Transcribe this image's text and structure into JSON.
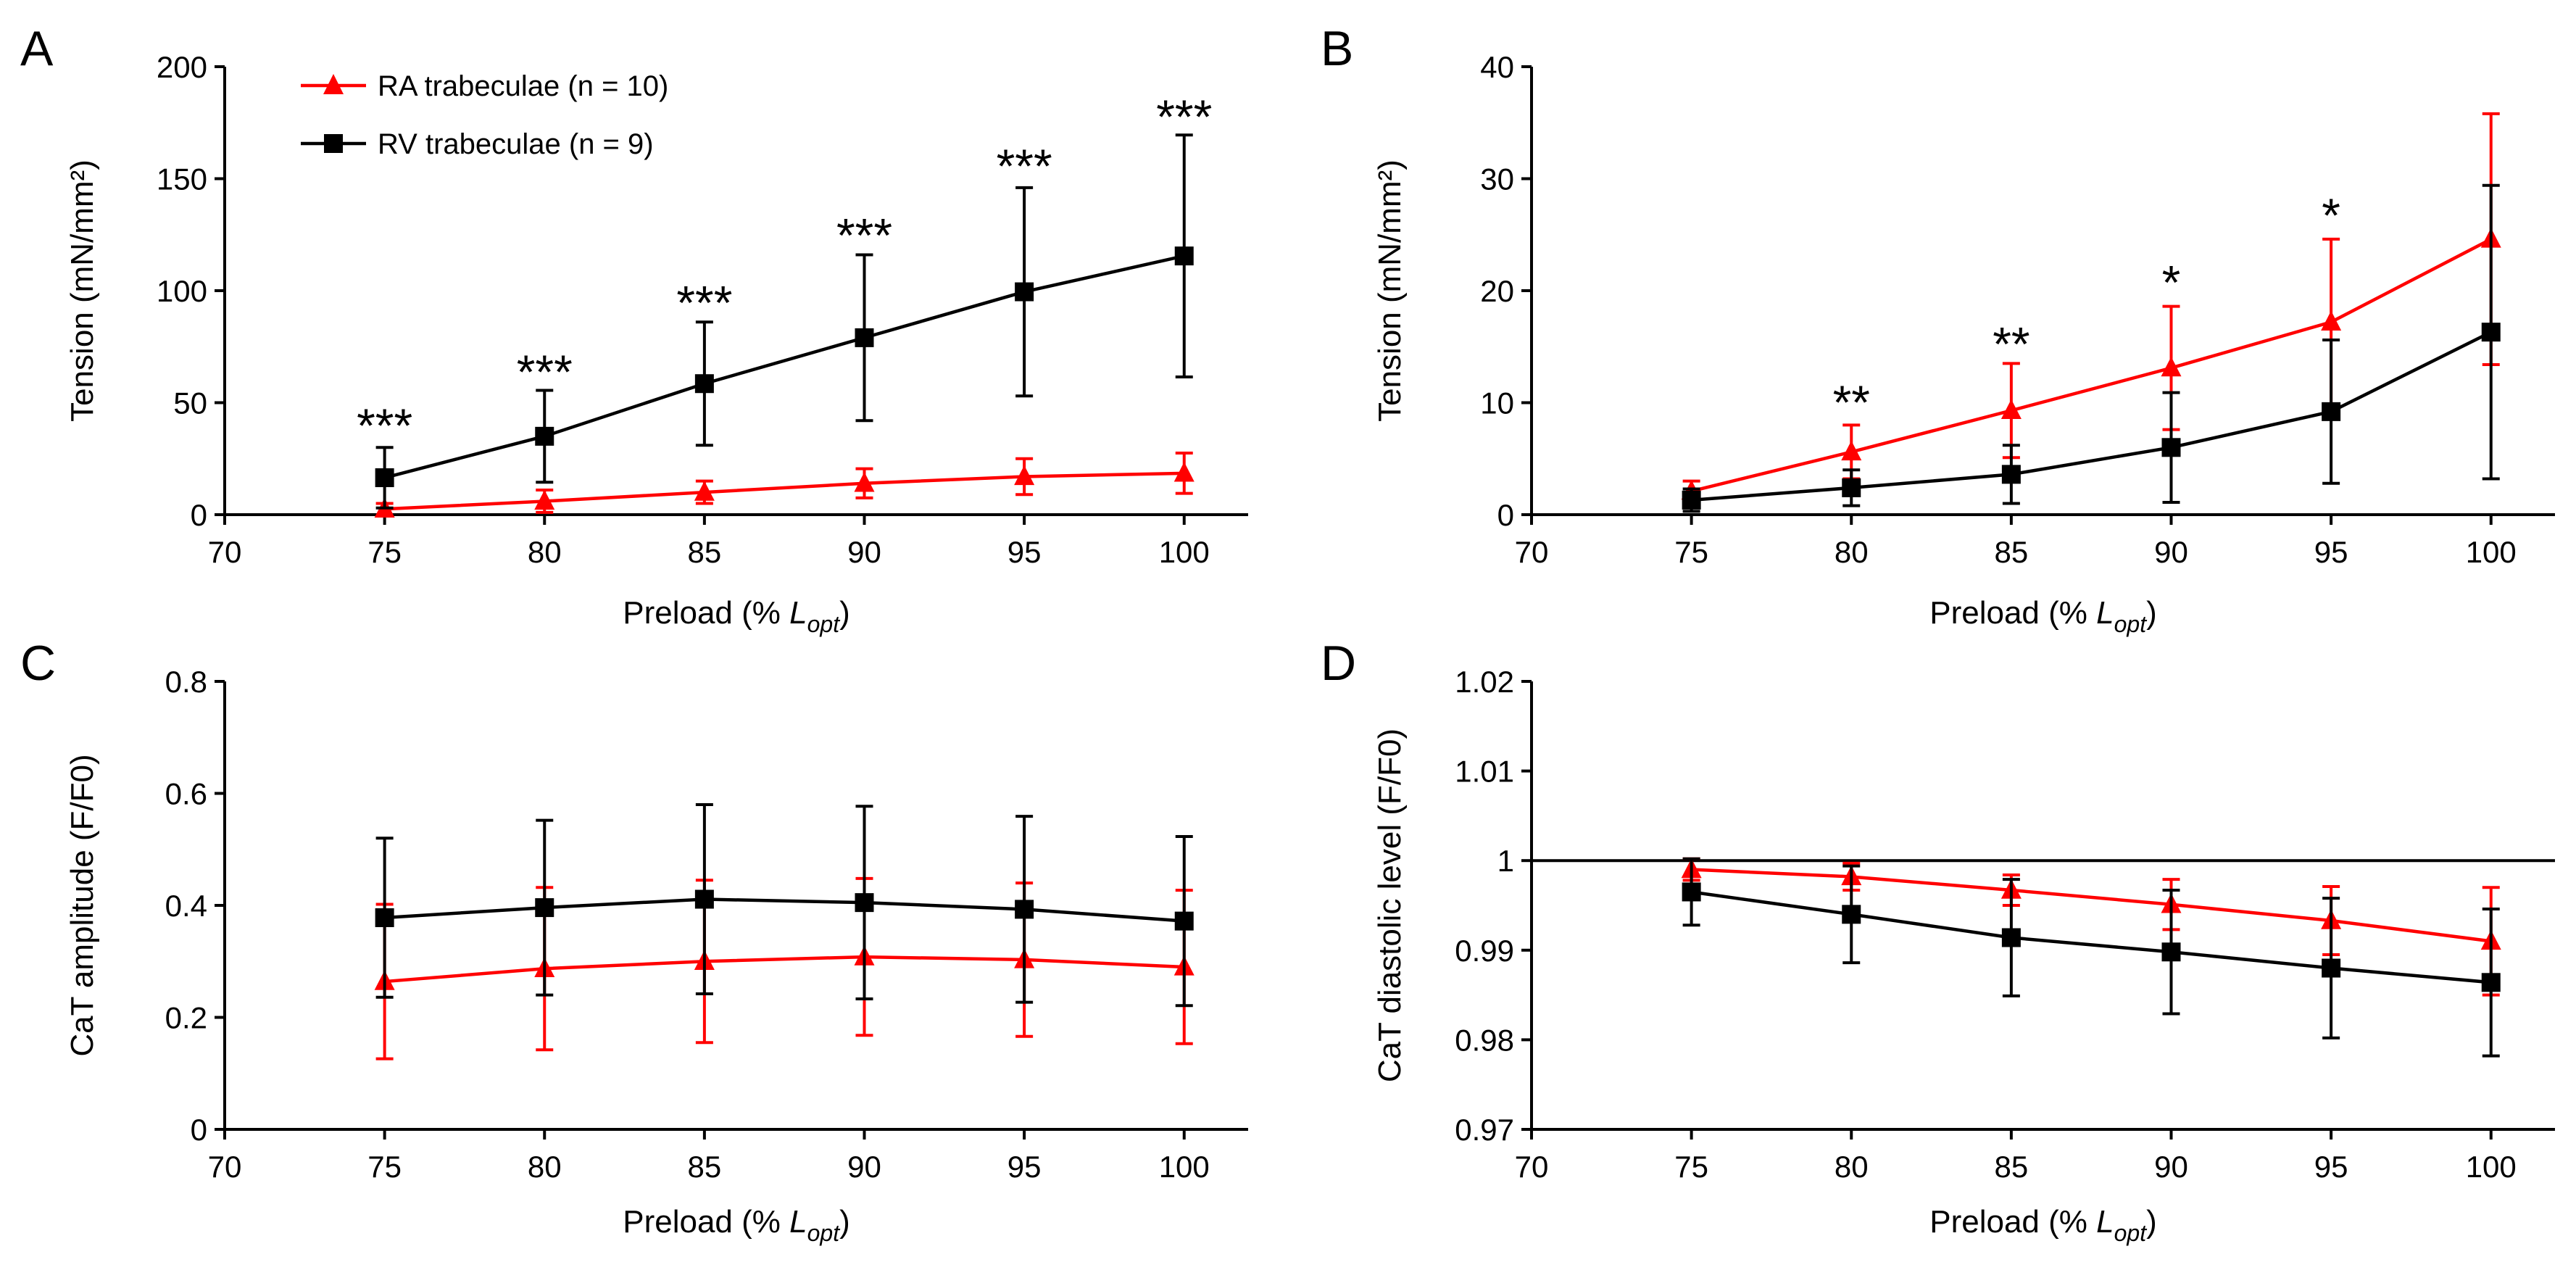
{
  "legend": [
    {
      "label": "RA trabeculae (n = 10)",
      "color": "#ff0000",
      "marker": "triangle"
    },
    {
      "label": "RV trabeculae (n = 9)",
      "color": "#000000",
      "marker": "square"
    }
  ],
  "chart_data": [
    {
      "panel": "A",
      "type": "line",
      "xlabel": "Preload (% ",
      "xlabel_italic": "L",
      "xlabel_sub": "opt",
      "xlabel_close": ")",
      "ylabel": "Tension (mN/mm²)",
      "xlim": [
        70,
        102
      ],
      "xticks": [
        70,
        75,
        80,
        85,
        90,
        95,
        100
      ],
      "ylim": [
        0,
        200
      ],
      "yticks": [
        0,
        50,
        100,
        150,
        200
      ],
      "x": [
        75,
        80,
        85,
        90,
        95,
        100
      ],
      "series": [
        {
          "name": "RA trabeculae (n = 10)",
          "color": "#ff0000",
          "marker": "triangle",
          "values": [
            2.5,
            6,
            10,
            14,
            17,
            18.5
          ],
          "err_up": [
            2.5,
            5,
            5,
            6.5,
            8,
            9
          ],
          "err_down": [
            2.5,
            5,
            5,
            6.5,
            8,
            9
          ]
        },
        {
          "name": "RV trabeculae (n = 9)",
          "color": "#000000",
          "marker": "square",
          "values": [
            16.5,
            35,
            58.5,
            79,
            99.5,
            115.5
          ],
          "err_up": [
            13.5,
            20.5,
            27.5,
            37,
            46.5,
            54
          ],
          "err_down": [
            13.5,
            20.5,
            27.5,
            37,
            46.5,
            54
          ]
        }
      ],
      "annotations": [
        {
          "x": 75,
          "y": 42,
          "text": "***"
        },
        {
          "x": 80,
          "y": 66,
          "text": "***"
        },
        {
          "x": 85,
          "y": 97,
          "text": "***"
        },
        {
          "x": 90,
          "y": 127,
          "text": "***"
        },
        {
          "x": 95,
          "y": 158,
          "text": "***"
        },
        {
          "x": 100,
          "y": 180,
          "text": "***"
        }
      ],
      "show_legend": true
    },
    {
      "panel": "B",
      "type": "line",
      "xlabel": "Preload (% ",
      "xlabel_italic": "L",
      "xlabel_sub": "opt",
      "xlabel_close": ")",
      "ylabel": "Tension (mN/mm²)",
      "xlim": [
        70,
        102
      ],
      "xticks": [
        70,
        75,
        80,
        85,
        90,
        95,
        100
      ],
      "ylim": [
        0,
        40
      ],
      "yticks": [
        0,
        10,
        20,
        30,
        40
      ],
      "x": [
        75,
        80,
        85,
        90,
        95,
        100
      ],
      "series": [
        {
          "name": "RA trabeculae (n = 10)",
          "color": "#ff0000",
          "marker": "triangle",
          "values": [
            2.1,
            5.6,
            9.3,
            13.1,
            17.2,
            24.6
          ],
          "err_up": [
            0.9,
            2.4,
            4.2,
            5.5,
            7.4,
            11.2
          ],
          "err_down": [
            0.9,
            2.4,
            4.2,
            5.5,
            7.4,
            11.2
          ]
        },
        {
          "name": "RV trabeculae (n = 9)",
          "color": "#000000",
          "marker": "square",
          "values": [
            1.3,
            2.4,
            3.6,
            6.0,
            9.2,
            16.3
          ],
          "err_up": [
            1.0,
            1.6,
            2.6,
            4.9,
            6.4,
            13.1
          ],
          "err_down": [
            1.0,
            1.6,
            2.6,
            4.9,
            6.4,
            13.1
          ]
        }
      ],
      "annotations": [
        {
          "x": 80,
          "y": 10.5,
          "text": "**"
        },
        {
          "x": 85,
          "y": 15.7,
          "text": "**"
        },
        {
          "x": 90,
          "y": 21.2,
          "text": "*"
        },
        {
          "x": 95,
          "y": 27.2,
          "text": "*"
        }
      ],
      "show_legend": false
    },
    {
      "panel": "C",
      "type": "line",
      "xlabel": "Preload (% ",
      "xlabel_italic": "L",
      "xlabel_sub": "opt",
      "xlabel_close": ")",
      "ylabel": "CaT amplitude (F/F0)",
      "xlim": [
        70,
        102
      ],
      "xticks": [
        70,
        75,
        80,
        85,
        90,
        95,
        100
      ],
      "ylim": [
        0,
        0.8
      ],
      "yticks": [
        0,
        0.2,
        0.4,
        0.6,
        0.8
      ],
      "ytick_labels": [
        "0",
        "0.2",
        "0.4",
        "0.6",
        "0.8"
      ],
      "x": [
        75,
        80,
        85,
        90,
        95,
        100
      ],
      "series": [
        {
          "name": "RA trabeculae (n = 10)",
          "color": "#ff0000",
          "marker": "triangle",
          "values": [
            0.264,
            0.287,
            0.3,
            0.308,
            0.303,
            0.29
          ],
          "err_up": [
            0.138,
            0.145,
            0.145,
            0.14,
            0.137,
            0.137
          ],
          "err_down": [
            0.138,
            0.145,
            0.145,
            0.14,
            0.137,
            0.137
          ]
        },
        {
          "name": "RV trabeculae (n = 9)",
          "color": "#000000",
          "marker": "square",
          "values": [
            0.378,
            0.396,
            0.411,
            0.405,
            0.393,
            0.372
          ],
          "err_up": [
            0.142,
            0.156,
            0.169,
            0.172,
            0.166,
            0.151
          ],
          "err_down": [
            0.142,
            0.156,
            0.169,
            0.172,
            0.166,
            0.151
          ]
        }
      ],
      "annotations": [],
      "show_legend": false
    },
    {
      "panel": "D",
      "type": "line",
      "xlabel": "Preload (% ",
      "xlabel_italic": "L",
      "xlabel_sub": "opt",
      "xlabel_close": ")",
      "ylabel": "CaT diastolic level (F/F0)",
      "xlim": [
        70,
        102
      ],
      "xticks": [
        70,
        75,
        80,
        85,
        90,
        95,
        100
      ],
      "ylim": [
        0.97,
        1.02
      ],
      "yticks": [
        0.97,
        0.98,
        0.99,
        1,
        1.01,
        1.02
      ],
      "ytick_labels": [
        "0.97",
        "0.98",
        "0.99",
        "1",
        "1.01",
        "1.02"
      ],
      "x": [
        75,
        80,
        85,
        90,
        95,
        100
      ],
      "reference_line": 1,
      "series": [
        {
          "name": "RA trabeculae (n = 10)",
          "color": "#ff0000",
          "marker": "triangle",
          "values": [
            0.999,
            0.9982,
            0.9967,
            0.9951,
            0.9933,
            0.991
          ],
          "err_up": [
            0.0012,
            0.0015,
            0.0017,
            0.0028,
            0.0038,
            0.006
          ],
          "err_down": [
            0.0012,
            0.0015,
            0.0017,
            0.0028,
            0.0038,
            0.006
          ]
        },
        {
          "name": "RV trabeculae (n = 9)",
          "color": "#000000",
          "marker": "square",
          "values": [
            0.9965,
            0.994,
            0.9914,
            0.9898,
            0.988,
            0.9864
          ],
          "err_up": [
            0.0037,
            0.0054,
            0.0065,
            0.0069,
            0.0078,
            0.0082
          ],
          "err_down": [
            0.0037,
            0.0054,
            0.0065,
            0.0069,
            0.0078,
            0.0082
          ]
        }
      ],
      "annotations": [],
      "show_legend": false
    }
  ]
}
